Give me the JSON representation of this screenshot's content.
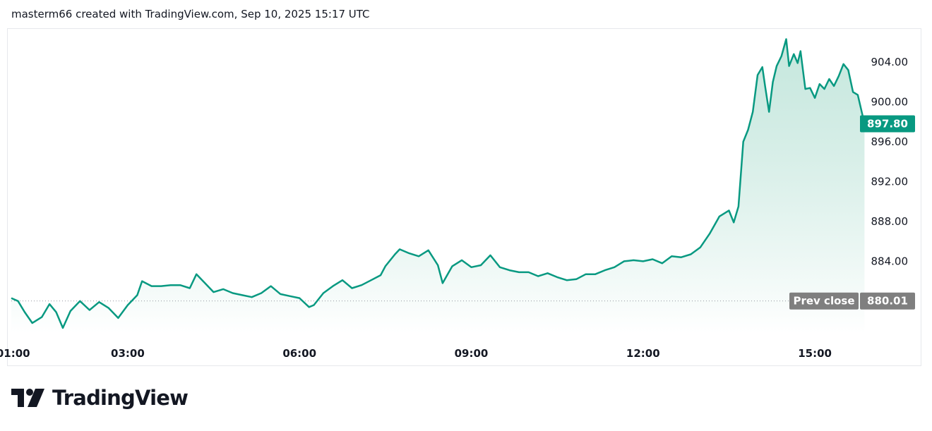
{
  "header": {
    "attribution": "masterm66 created with TradingView.com, Sep 10, 2025 15:17 UTC"
  },
  "brand": {
    "name": "TradingView",
    "logo_icon": "tradingview-logo-icon"
  },
  "colors": {
    "line": "#089981",
    "fill_top": "#b2dfd2",
    "fill_bottom": "#ffffff",
    "badge": "#089981",
    "prev_badge": "#7f7f7f",
    "text": "#131722",
    "grid_border": "#e6e8ec"
  },
  "chart_data": {
    "type": "area",
    "x_unit": "time of day (UTC, Sep 10, 2025)",
    "x_ticks": [
      "01:00",
      "03:00",
      "06:00",
      "09:00",
      "12:00",
      "15:00"
    ],
    "y_ticks": [
      "904.00",
      "900.00",
      "896.00",
      "892.00",
      "888.00",
      "884.00"
    ],
    "ylim": [
      876.8,
      907.4
    ],
    "xlim": [
      "00:58",
      "16:45"
    ],
    "last_price": {
      "label": "897.80",
      "value": 897.8
    },
    "prev_close": {
      "label": "Prev close",
      "value_label": "880.01",
      "value": 880.01
    },
    "series": [
      {
        "points": [
          [
            "00:58",
            880.3
          ],
          [
            "01:05",
            880.0
          ],
          [
            "01:12",
            878.9
          ],
          [
            "01:20",
            877.8
          ],
          [
            "01:30",
            878.4
          ],
          [
            "01:38",
            879.7
          ],
          [
            "01:45",
            878.9
          ],
          [
            "01:52",
            877.3
          ],
          [
            "02:00",
            879.0
          ],
          [
            "02:10",
            880.0
          ],
          [
            "02:20",
            879.1
          ],
          [
            "02:30",
            879.9
          ],
          [
            "02:40",
            879.3
          ],
          [
            "02:50",
            878.3
          ],
          [
            "03:00",
            879.6
          ],
          [
            "03:10",
            880.6
          ],
          [
            "03:15",
            882.0
          ],
          [
            "03:25",
            881.5
          ],
          [
            "03:35",
            881.5
          ],
          [
            "03:45",
            881.6
          ],
          [
            "03:55",
            881.6
          ],
          [
            "04:05",
            881.3
          ],
          [
            "04:12",
            882.7
          ],
          [
            "04:20",
            881.9
          ],
          [
            "04:30",
            880.9
          ],
          [
            "04:40",
            881.2
          ],
          [
            "04:50",
            880.8
          ],
          [
            "05:00",
            880.6
          ],
          [
            "05:10",
            880.4
          ],
          [
            "05:20",
            880.8
          ],
          [
            "05:30",
            881.5
          ],
          [
            "05:40",
            880.7
          ],
          [
            "05:50",
            880.5
          ],
          [
            "06:00",
            880.3
          ],
          [
            "06:10",
            879.4
          ],
          [
            "06:15",
            879.6
          ],
          [
            "06:25",
            880.8
          ],
          [
            "06:35",
            881.5
          ],
          [
            "06:45",
            882.1
          ],
          [
            "06:55",
            881.3
          ],
          [
            "07:05",
            881.6
          ],
          [
            "07:15",
            882.1
          ],
          [
            "07:25",
            882.6
          ],
          [
            "07:30",
            883.5
          ],
          [
            "07:40",
            884.7
          ],
          [
            "07:45",
            885.2
          ],
          [
            "07:55",
            884.8
          ],
          [
            "08:05",
            884.5
          ],
          [
            "08:15",
            885.1
          ],
          [
            "08:25",
            883.6
          ],
          [
            "08:30",
            881.8
          ],
          [
            "08:40",
            883.5
          ],
          [
            "08:50",
            884.1
          ],
          [
            "09:00",
            883.4
          ],
          [
            "09:10",
            883.6
          ],
          [
            "09:20",
            884.6
          ],
          [
            "09:30",
            883.4
          ],
          [
            "09:40",
            883.1
          ],
          [
            "09:50",
            882.9
          ],
          [
            "10:00",
            882.9
          ],
          [
            "10:10",
            882.5
          ],
          [
            "10:20",
            882.8
          ],
          [
            "10:30",
            882.4
          ],
          [
            "10:40",
            882.1
          ],
          [
            "10:50",
            882.2
          ],
          [
            "11:00",
            882.7
          ],
          [
            "11:10",
            882.7
          ],
          [
            "11:20",
            883.1
          ],
          [
            "11:30",
            883.4
          ],
          [
            "11:40",
            884.0
          ],
          [
            "11:50",
            884.1
          ],
          [
            "12:00",
            884.0
          ],
          [
            "12:10",
            884.2
          ],
          [
            "12:20",
            883.8
          ],
          [
            "12:30",
            884.5
          ],
          [
            "12:40",
            884.4
          ],
          [
            "12:50",
            884.7
          ],
          [
            "13:00",
            885.4
          ],
          [
            "13:10",
            886.8
          ],
          [
            "13:20",
            888.5
          ],
          [
            "13:30",
            889.1
          ],
          [
            "13:35",
            887.9
          ],
          [
            "13:40",
            889.5
          ],
          [
            "13:45",
            896.0
          ],
          [
            "13:50",
            897.2
          ],
          [
            "13:55",
            899.0
          ],
          [
            "14:00",
            902.7
          ],
          [
            "14:05",
            903.5
          ],
          [
            "14:08",
            901.5
          ],
          [
            "14:12",
            899.0
          ],
          [
            "14:16",
            902.0
          ],
          [
            "14:20",
            903.6
          ],
          [
            "14:25",
            904.6
          ],
          [
            "14:30",
            906.3
          ],
          [
            "14:33",
            903.6
          ],
          [
            "14:38",
            904.8
          ],
          [
            "14:42",
            903.9
          ],
          [
            "14:45",
            905.1
          ],
          [
            "14:50",
            901.3
          ],
          [
            "14:55",
            901.4
          ],
          [
            "15:00",
            900.4
          ],
          [
            "15:05",
            901.8
          ],
          [
            "15:10",
            901.3
          ],
          [
            "15:15",
            902.3
          ],
          [
            "15:20",
            901.6
          ],
          [
            "15:25",
            902.6
          ],
          [
            "15:30",
            903.8
          ],
          [
            "15:35",
            903.2
          ],
          [
            "15:40",
            901.0
          ],
          [
            "15:45",
            900.7
          ],
          [
            "15:52",
            897.8
          ]
        ]
      }
    ]
  }
}
